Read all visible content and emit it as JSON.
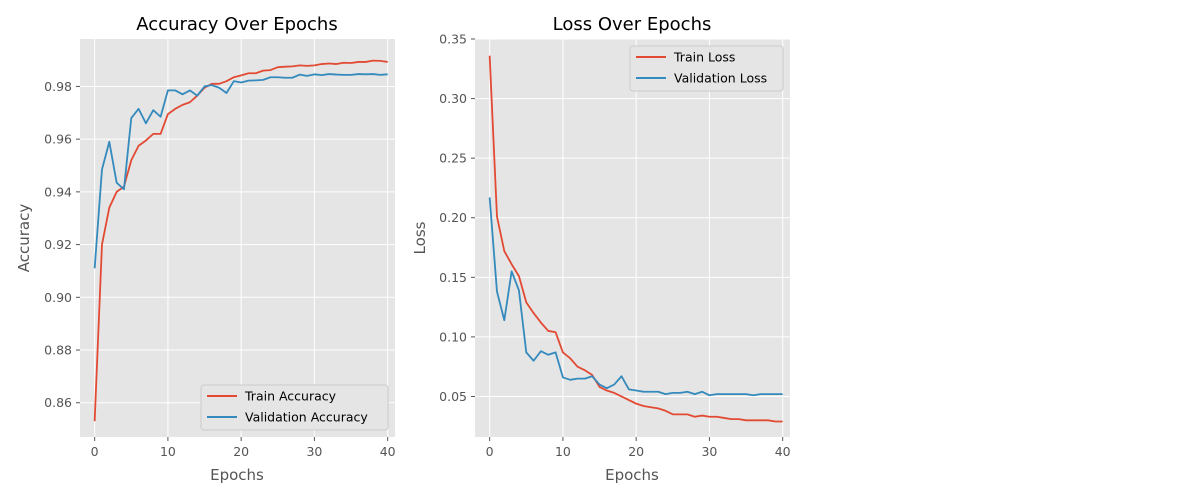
{
  "chart_data": [
    {
      "type": "line",
      "title": "Accuracy Over Epochs",
      "xlabel": "Epochs",
      "ylabel": "Accuracy",
      "xlim": [
        -2,
        41
      ],
      "ylim": [
        0.847,
        0.998
      ],
      "xticks": [
        0,
        10,
        20,
        30,
        40
      ],
      "yticks": [
        0.86,
        0.88,
        0.9,
        0.92,
        0.94,
        0.96,
        0.98
      ],
      "ytick_labels": [
        "0.86",
        "0.88",
        "0.90",
        "0.92",
        "0.94",
        "0.96",
        "0.98"
      ],
      "xtick_labels": [
        "0",
        "10",
        "20",
        "30",
        "40"
      ],
      "grid": true,
      "legend_position": "lower-right",
      "x": [
        0,
        1,
        2,
        3,
        4,
        5,
        6,
        7,
        8,
        9,
        10,
        11,
        12,
        13,
        14,
        15,
        16,
        17,
        18,
        19,
        20,
        21,
        22,
        23,
        24,
        25,
        26,
        27,
        28,
        29,
        30,
        31,
        32,
        33,
        34,
        35,
        36,
        37,
        38,
        39,
        40
      ],
      "series": [
        {
          "name": "Train Accuracy",
          "color": "#E24A33",
          "values": [
            0.853,
            0.92,
            0.934,
            0.94,
            0.942,
            0.952,
            0.9575,
            0.9595,
            0.962,
            0.962,
            0.9695,
            0.9715,
            0.973,
            0.974,
            0.9765,
            0.9795,
            0.981,
            0.981,
            0.982,
            0.9835,
            0.9842,
            0.985,
            0.985,
            0.986,
            0.9862,
            0.9873,
            0.9875,
            0.9876,
            0.988,
            0.9878,
            0.988,
            0.9885,
            0.9887,
            0.9885,
            0.989,
            0.9889,
            0.9893,
            0.9893,
            0.9898,
            0.9897,
            0.9893
          ]
        },
        {
          "name": "Validation Accuracy",
          "color": "#348ABD",
          "values": [
            0.911,
            0.9485,
            0.959,
            0.9435,
            0.941,
            0.968,
            0.9715,
            0.966,
            0.971,
            0.9685,
            0.9785,
            0.9785,
            0.977,
            0.9785,
            0.9765,
            0.98,
            0.9805,
            0.9795,
            0.9775,
            0.982,
            0.9815,
            0.9822,
            0.9823,
            0.9825,
            0.9835,
            0.9835,
            0.9833,
            0.9833,
            0.9845,
            0.984,
            0.9846,
            0.9843,
            0.9847,
            0.9845,
            0.9844,
            0.9844,
            0.9847,
            0.9846,
            0.9847,
            0.9844,
            0.9846
          ]
        }
      ]
    },
    {
      "type": "line",
      "title": "Loss Over Epochs",
      "xlabel": "Epochs",
      "ylabel": "Loss",
      "xlim": [
        -2,
        41
      ],
      "ylim": [
        0.016,
        0.35
      ],
      "xticks": [
        0,
        10,
        20,
        30,
        40
      ],
      "yticks": [
        0.05,
        0.1,
        0.15,
        0.2,
        0.25,
        0.3,
        0.35
      ],
      "ytick_labels": [
        "0.05",
        "0.10",
        "0.15",
        "0.20",
        "0.25",
        "0.30",
        "0.35"
      ],
      "xtick_labels": [
        "0",
        "10",
        "20",
        "30",
        "40"
      ],
      "grid": true,
      "legend_position": "upper-right",
      "x": [
        0,
        1,
        2,
        3,
        4,
        5,
        6,
        7,
        8,
        9,
        10,
        11,
        12,
        13,
        14,
        15,
        16,
        17,
        18,
        19,
        20,
        21,
        22,
        23,
        24,
        25,
        26,
        27,
        28,
        29,
        30,
        31,
        32,
        33,
        34,
        35,
        36,
        37,
        38,
        39,
        40
      ],
      "series": [
        {
          "name": "Train Loss",
          "color": "#E24A33",
          "values": [
            0.336,
            0.201,
            0.172,
            0.161,
            0.151,
            0.129,
            0.12,
            0.112,
            0.105,
            0.104,
            0.087,
            0.082,
            0.075,
            0.072,
            0.068,
            0.058,
            0.055,
            0.053,
            0.05,
            0.047,
            0.044,
            0.042,
            0.041,
            0.04,
            0.038,
            0.035,
            0.035,
            0.035,
            0.033,
            0.034,
            0.033,
            0.033,
            0.032,
            0.031,
            0.031,
            0.03,
            0.03,
            0.03,
            0.03,
            0.029,
            0.029
          ]
        },
        {
          "name": "Validation Loss",
          "color": "#348ABD",
          "values": [
            0.217,
            0.138,
            0.114,
            0.155,
            0.139,
            0.087,
            0.08,
            0.088,
            0.085,
            0.087,
            0.066,
            0.064,
            0.065,
            0.065,
            0.067,
            0.06,
            0.057,
            0.06,
            0.067,
            0.056,
            0.055,
            0.054,
            0.054,
            0.054,
            0.052,
            0.053,
            0.053,
            0.054,
            0.052,
            0.054,
            0.051,
            0.052,
            0.052,
            0.052,
            0.052,
            0.052,
            0.051,
            0.052,
            0.052,
            0.052,
            0.052
          ]
        }
      ]
    }
  ]
}
